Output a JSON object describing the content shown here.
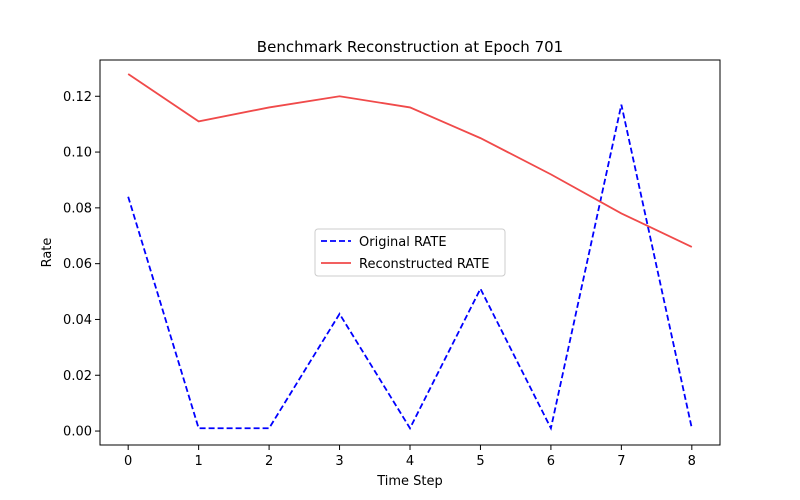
{
  "chart_data": {
    "type": "line",
    "title": "Benchmark Reconstruction at Epoch 701",
    "xlabel": "Time Step",
    "ylabel": "Rate",
    "x": [
      0,
      1,
      2,
      3,
      4,
      5,
      6,
      7,
      8
    ],
    "xlim": [
      -0.4,
      8.4
    ],
    "ylim": [
      -0.005,
      0.133
    ],
    "xticks": [
      0,
      1,
      2,
      3,
      4,
      5,
      6,
      7,
      8
    ],
    "yticks": [
      0.0,
      0.02,
      0.04,
      0.06,
      0.08,
      0.1,
      0.12
    ],
    "ytick_labels": [
      "0.00",
      "0.02",
      "0.04",
      "0.06",
      "0.08",
      "0.10",
      "0.12"
    ],
    "grid": false,
    "legend_position": "center",
    "series": [
      {
        "name": "Original RATE",
        "color": "#0000ff",
        "style": "dashed",
        "values": [
          0.084,
          0.001,
          0.001,
          0.042,
          0.001,
          0.051,
          0.001,
          0.117,
          0.001
        ]
      },
      {
        "name": "Reconstructed RATE",
        "color": "#f04a4a",
        "style": "solid",
        "values": [
          0.128,
          0.111,
          0.116,
          0.12,
          0.116,
          0.105,
          0.092,
          0.078,
          0.066
        ]
      }
    ]
  }
}
